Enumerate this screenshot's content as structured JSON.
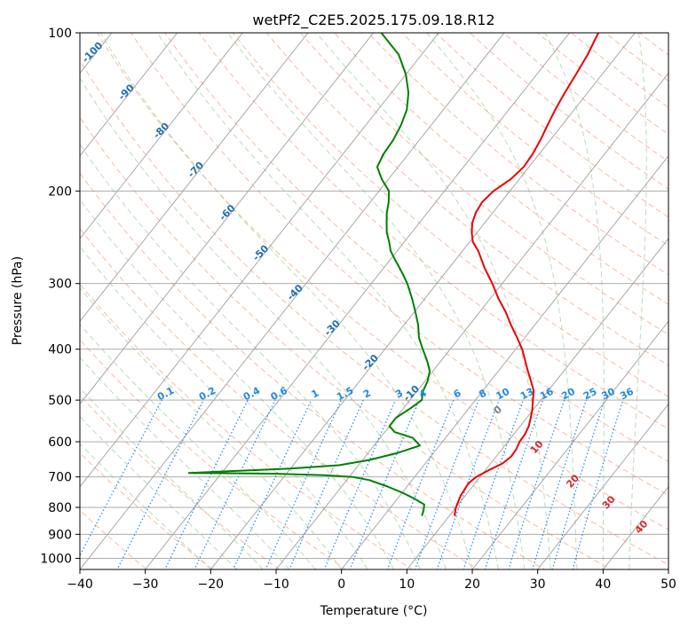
{
  "chart_data": {
    "type": "line",
    "subtype": "skew-t log-p sounding",
    "title": "wetPf2_C2E5.2025.175.09.18.R12",
    "xlabel": "Temperature (°C)",
    "ylabel": "Pressure (hPa)",
    "xlim": [
      -40,
      50
    ],
    "ylim": [
      1050,
      100
    ],
    "y_scale": "log",
    "grid": true,
    "x_ticks": [
      -40,
      -30,
      -20,
      -10,
      0,
      10,
      20,
      30,
      40,
      50
    ],
    "y_ticks": [
      100,
      200,
      300,
      400,
      500,
      600,
      700,
      800,
      900,
      1000
    ],
    "colors": {
      "temperature": "#ee0000",
      "dewpoint": "#008000",
      "mixing_ratio": "#1e88e5",
      "dry_adiabat_label": "#1f6fb0",
      "moist_adiabat_label": "#d62728",
      "isotherm": "#a0a0a0",
      "dry_adiabat": "#f4a582",
      "moist_adiabat": "#9ccc9c",
      "isotherm_zero_label": "#808080"
    },
    "series": [
      {
        "name": "",
        "color": "#ee0000",
        "points": [
          [
            830,
            10.8
          ],
          [
            800,
            10.0
          ],
          [
            760,
            9.3
          ],
          [
            720,
            9.0
          ],
          [
            700,
            9.4
          ],
          [
            680,
            10.5
          ],
          [
            660,
            11.8
          ],
          [
            640,
            12.3
          ],
          [
            620,
            12.2
          ],
          [
            600,
            11.8
          ],
          [
            580,
            11.7
          ],
          [
            560,
            11.3
          ],
          [
            540,
            10.6
          ],
          [
            520,
            9.8
          ],
          [
            500,
            8.8
          ],
          [
            480,
            7.8
          ],
          [
            460,
            6.2
          ],
          [
            440,
            4.5
          ],
          [
            420,
            2.8
          ],
          [
            400,
            1.0
          ],
          [
            380,
            -1.2
          ],
          [
            360,
            -3.6
          ],
          [
            340,
            -6.0
          ],
          [
            320,
            -8.8
          ],
          [
            300,
            -11.5
          ],
          [
            280,
            -14.6
          ],
          [
            260,
            -17.6
          ],
          [
            250,
            -19.5
          ],
          [
            240,
            -20.8
          ],
          [
            230,
            -21.9
          ],
          [
            220,
            -22.6
          ],
          [
            210,
            -22.9
          ],
          [
            200,
            -22.5
          ],
          [
            190,
            -21.3
          ],
          [
            180,
            -20.8
          ],
          [
            170,
            -21.0
          ],
          [
            160,
            -21.5
          ],
          [
            150,
            -22.2
          ],
          [
            140,
            -22.9
          ],
          [
            130,
            -23.5
          ],
          [
            120,
            -24.0
          ],
          [
            110,
            -24.6
          ],
          [
            100,
            -25.6
          ]
        ]
      },
      {
        "name": "",
        "color": "#008000",
        "points": [
          [
            830,
            5.8
          ],
          [
            810,
            5.4
          ],
          [
            790,
            4.8
          ],
          [
            770,
            2.6
          ],
          [
            750,
            0.0
          ],
          [
            730,
            -3.0
          ],
          [
            710,
            -6.5
          ],
          [
            700,
            -9.5
          ],
          [
            695,
            -14.0
          ],
          [
            690,
            -22.0
          ],
          [
            688,
            -35.0
          ],
          [
            680,
            -26.0
          ],
          [
            675,
            -20.0
          ],
          [
            665,
            -13.0
          ],
          [
            650,
            -9.0
          ],
          [
            630,
            -5.5
          ],
          [
            610,
            -3.0
          ],
          [
            590,
            -5.0
          ],
          [
            575,
            -8.5
          ],
          [
            560,
            -10.0
          ],
          [
            540,
            -10.0
          ],
          [
            520,
            -9.0
          ],
          [
            500,
            -8.2
          ],
          [
            480,
            -9.1
          ],
          [
            460,
            -9.6
          ],
          [
            440,
            -10.5
          ],
          [
            420,
            -12.2
          ],
          [
            400,
            -14.2
          ],
          [
            380,
            -16.2
          ],
          [
            360,
            -17.8
          ],
          [
            340,
            -19.8
          ],
          [
            320,
            -22.0
          ],
          [
            300,
            -24.5
          ],
          [
            290,
            -26.0
          ],
          [
            280,
            -27.6
          ],
          [
            270,
            -29.3
          ],
          [
            260,
            -31.0
          ],
          [
            250,
            -32.3
          ],
          [
            240,
            -33.8
          ],
          [
            230,
            -35.0
          ],
          [
            220,
            -36.2
          ],
          [
            210,
            -37.2
          ],
          [
            200,
            -38.5
          ],
          [
            190,
            -41.0
          ],
          [
            180,
            -43.2
          ],
          [
            170,
            -43.8
          ],
          [
            160,
            -44.0
          ],
          [
            150,
            -44.6
          ],
          [
            140,
            -45.6
          ],
          [
            130,
            -47.4
          ],
          [
            120,
            -50.0
          ],
          [
            110,
            -53.5
          ],
          [
            100,
            -58.8
          ]
        ]
      }
    ],
    "mixing_ratio_lines": [
      "0.1",
      "0.2",
      "0.4",
      "0.6",
      "1",
      "1.5",
      "2",
      "3",
      "4",
      "6",
      "8",
      "10",
      "13",
      "16",
      "20",
      "25",
      "30",
      "36"
    ],
    "dry_adiabat_labels": [
      "-100",
      "-90",
      "-80",
      "-70",
      "-60",
      "-50",
      "-40",
      "-30",
      "-20",
      "-10"
    ],
    "moist_adiabat_labels": [
      "10",
      "20",
      "30",
      "40"
    ],
    "isotherm_labels": [
      "0"
    ]
  }
}
